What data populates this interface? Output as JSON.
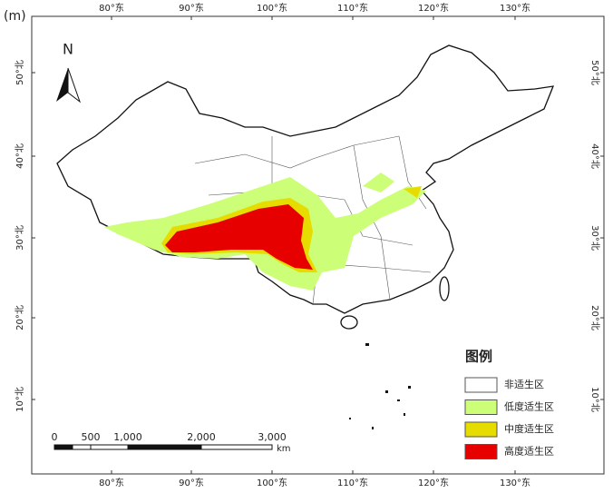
{
  "panel_label": "(m)",
  "north_arrow": "N",
  "longitude_labels": [
    "80°东",
    "90°东",
    "100°东",
    "110°东",
    "120°东",
    "130°东"
  ],
  "latitude_labels": [
    "50°北",
    "40°北",
    "30°北",
    "20°北",
    "10°北"
  ],
  "legend": {
    "title": "图例",
    "items": [
      {
        "label": "非适生区",
        "color": "#ffffff"
      },
      {
        "label": "低度适生区",
        "color": "#ccff77"
      },
      {
        "label": "中度适生区",
        "color": "#e6dc00"
      },
      {
        "label": "高度适生区",
        "color": "#e60000"
      }
    ]
  },
  "scale_bar": {
    "labels": [
      "0",
      "500",
      "1,000",
      "2,000",
      "3,000"
    ],
    "unit": "km"
  }
}
